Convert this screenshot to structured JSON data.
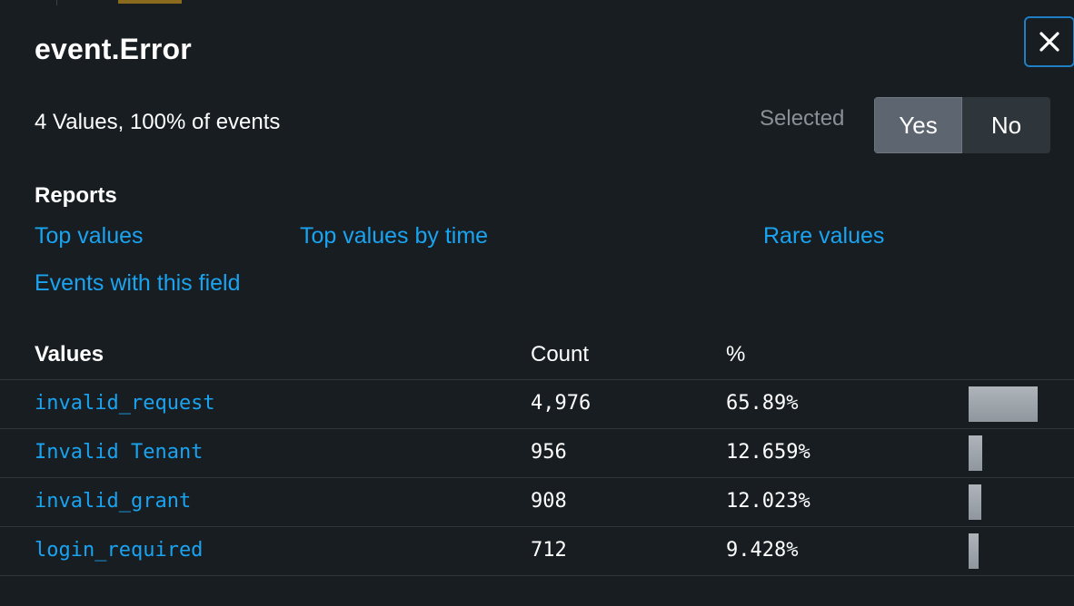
{
  "field": {
    "title": "event.Error",
    "summary": "4 Values, 100% of events",
    "selected_label": "Selected",
    "toggle": {
      "yes": "Yes",
      "no": "No",
      "active": "yes"
    },
    "close_icon": "close-x-icon"
  },
  "reports": {
    "heading": "Reports",
    "links": {
      "top_values": "Top values",
      "top_values_by_time": "Top values by time",
      "rare_values": "Rare values",
      "events_with_field": "Events with this field"
    }
  },
  "values_table": {
    "headers": {
      "values": "Values",
      "count": "Count",
      "percent": "%"
    },
    "rows": [
      {
        "value": "invalid_request",
        "count": "4,976",
        "percent": "65.89%",
        "fraction": 0.6589
      },
      {
        "value": "Invalid Tenant",
        "count": "956",
        "percent": "12.659%",
        "fraction": 0.12659
      },
      {
        "value": "invalid_grant",
        "count": "908",
        "percent": "12.023%",
        "fraction": 0.12023
      },
      {
        "value": "login_required",
        "count": "712",
        "percent": "9.428%",
        "fraction": 0.09428
      }
    ]
  },
  "colors": {
    "background": "#171d21",
    "link": "#1aa3f0",
    "toggle_active": "#5c6570",
    "toggle_inactive": "#2e353b",
    "close_border": "#1f7ec4"
  }
}
